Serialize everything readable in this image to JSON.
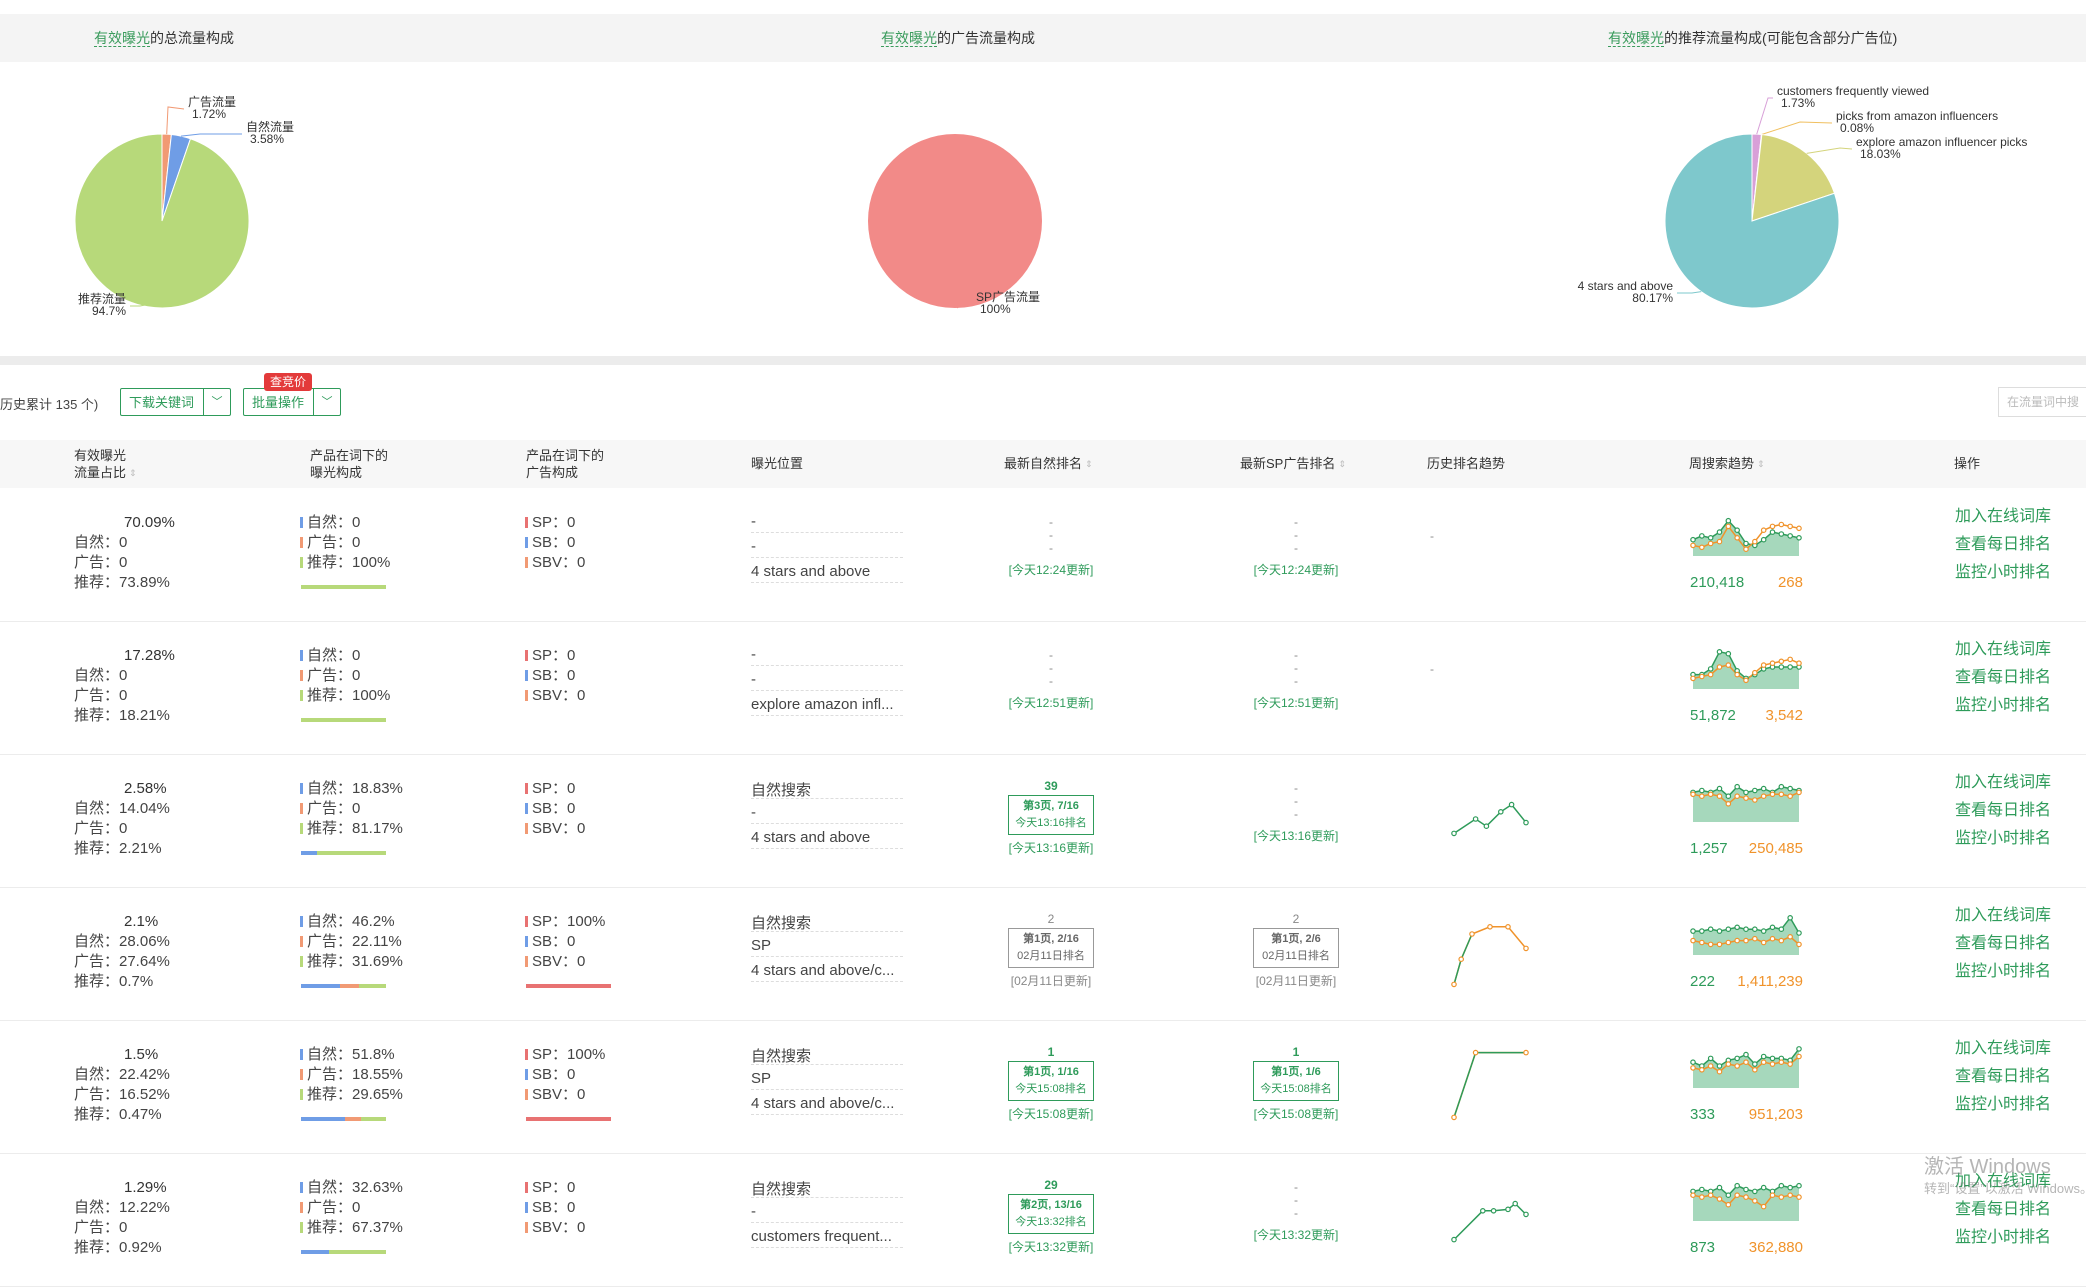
{
  "charts": [
    {
      "title_hl": "有效曝光",
      "title_rest": "的总流量构成",
      "chart_data": {
        "type": "pie",
        "slices": [
          {
            "label": "广告流量",
            "value": 1.72,
            "pct": "1.72%",
            "color": "#f19a74"
          },
          {
            "label": "自然流量",
            "value": 3.58,
            "pct": "3.58%",
            "color": "#6f9de6"
          },
          {
            "label": "推荐流量",
            "value": 94.7,
            "pct": "94.7%",
            "color": "#b7d97a"
          }
        ]
      }
    },
    {
      "title_hl": "有效曝光",
      "title_rest": "的广告流量构成",
      "chart_data": {
        "type": "pie",
        "slices": [
          {
            "label": "SP广告流量",
            "value": 100,
            "pct": "100%",
            "color": "#f28a88"
          }
        ]
      }
    },
    {
      "title_hl": "有效曝光",
      "title_rest": "的推荐流量构成(可能包含部分广告位)",
      "chart_data": {
        "type": "pie",
        "slices": [
          {
            "label": "customers frequently viewed",
            "value": 1.73,
            "pct": "1.73%",
            "color": "#d8a0d8"
          },
          {
            "label": "picks from amazon influencers",
            "value": 0.08,
            "pct": "0.08%",
            "color": "#f0c060"
          },
          {
            "label": "explore amazon influencer picks",
            "value": 18.03,
            "pct": "18.03%",
            "color": "#d4d47c"
          },
          {
            "label": "4 stars and above",
            "value": 80.17,
            "pct": "80.17%",
            "color": "#7ec8cc"
          }
        ]
      }
    }
  ],
  "toolbar": {
    "history_text": "历史累计 135 个)",
    "download_label": "下载关键词",
    "batch_label": "批量操作",
    "badge": "查竞价",
    "search_placeholder": "在流量词中搜"
  },
  "table": {
    "headers": {
      "exposure_1": "有效曝光",
      "exposure_2": "流量占比",
      "composition_1": "产品在词下的",
      "composition_2": "曝光构成",
      "ad_1": "产品在词下的",
      "ad_2": "广告构成",
      "position": "曝光位置",
      "natural_rank": "最新自然排名",
      "sp_rank": "最新SP广告排名",
      "history": "历史排名趋势",
      "weekly": "周搜索趋势",
      "ops": "操作"
    },
    "ops_labels": [
      "加入在线词库",
      "查看每日排名",
      "监控小时排名"
    ],
    "rows": [
      {
        "share": "70.09%",
        "nat": "自然：0",
        "adv": "广告：0",
        "rec": "推荐：73.89%",
        "c_nat": "自然：0",
        "c_adv": "广告：0",
        "c_rec": "推荐：100%",
        "bar": [
          0,
          0,
          100
        ],
        "a_sp": "SP：0",
        "a_sb": "SB：0",
        "a_sbv": "SBV：0",
        "sp_bar": 0,
        "pos": [
          "-",
          "-",
          "4 stars and above"
        ],
        "nrank": {
          "type": "dash",
          "update": "[今天12:24更新]"
        },
        "srank": {
          "type": "dash",
          "update": "[今天12:24更新]"
        },
        "hist": {
          "type": "dash",
          "text": "-"
        },
        "weekly": {
          "v1": "210,418",
          "v2": "268",
          "g": [
            0.35,
            0.45,
            0.4,
            0.55,
            0.85,
            0.6,
            0.25,
            0.2,
            0.35,
            0.55,
            0.5,
            0.45,
            0.4
          ],
          "o": [
            0.2,
            0.15,
            0.25,
            0.3,
            0.7,
            0.4,
            0.1,
            0.3,
            0.6,
            0.7,
            0.75,
            0.7,
            0.65
          ]
        }
      },
      {
        "share": "17.28%",
        "nat": "自然：0",
        "adv": "广告：0",
        "rec": "推荐：18.21%",
        "c_nat": "自然：0",
        "c_adv": "广告：0",
        "c_rec": "推荐：100%",
        "bar": [
          0,
          0,
          100
        ],
        "a_sp": "SP：0",
        "a_sb": "SB：0",
        "a_sbv": "SBV：0",
        "sp_bar": 0,
        "pos": [
          "-",
          "-",
          "explore amazon infl..."
        ],
        "nrank": {
          "type": "dash",
          "update": "[今天12:51更新]"
        },
        "srank": {
          "type": "dash",
          "update": "[今天12:51更新]"
        },
        "hist": {
          "type": "dash",
          "text": "-"
        },
        "weekly": {
          "v1": "51,872",
          "v2": "3,542",
          "g": [
            0.3,
            0.3,
            0.45,
            0.9,
            0.85,
            0.4,
            0.2,
            0.3,
            0.45,
            0.5,
            0.5,
            0.5,
            0.5
          ],
          "o": [
            0.2,
            0.25,
            0.3,
            0.5,
            0.55,
            0.3,
            0.15,
            0.35,
            0.55,
            0.6,
            0.65,
            0.7,
            0.6
          ]
        }
      },
      {
        "share": "2.58%",
        "nat": "自然：14.04%",
        "adv": "广告：0",
        "rec": "推荐：2.21%",
        "c_nat": "自然：18.83%",
        "c_adv": "广告：0",
        "c_rec": "推荐：81.17%",
        "bar": [
          18.83,
          0,
          81.17
        ],
        "a_sp": "SP：0",
        "a_sb": "SB：0",
        "a_sbv": "SBV：0",
        "sp_bar": 0,
        "pos": [
          "自然搜索",
          "-",
          "4 stars and above"
        ],
        "nrank": {
          "type": "box",
          "num": "39",
          "line1": "第3页, 7/16",
          "line2": "今天13:16排名",
          "update": "[今天13:16更新]",
          "grey": false
        },
        "srank": {
          "type": "dash",
          "update": "[今天13:16更新]"
        },
        "hist": {
          "type": "line",
          "pts": [
            [
              0,
              0.3
            ],
            [
              0.3,
              0.5
            ],
            [
              0.45,
              0.4
            ],
            [
              0.65,
              0.6
            ],
            [
              0.8,
              0.7
            ],
            [
              1,
              0.45
            ]
          ]
        },
        "weekly": {
          "v1": "1,257",
          "v2": "250,485",
          "g": [
            0.7,
            0.75,
            0.7,
            0.8,
            0.6,
            0.85,
            0.7,
            0.75,
            0.8,
            0.7,
            0.85,
            0.8,
            0.75
          ],
          "o": [
            0.65,
            0.6,
            0.65,
            0.6,
            0.4,
            0.6,
            0.55,
            0.5,
            0.6,
            0.65,
            0.65,
            0.6,
            0.7
          ]
        }
      },
      {
        "share": "2.1%",
        "nat": "自然：28.06%",
        "adv": "广告：27.64%",
        "rec": "推荐：0.7%",
        "c_nat": "自然：46.2%",
        "c_adv": "广告：22.11%",
        "c_rec": "推荐：31.69%",
        "bar": [
          46.2,
          22.11,
          31.69
        ],
        "a_sp": "SP：100%",
        "a_sb": "SB：0",
        "a_sbv": "SBV：0",
        "sp_bar": 100,
        "pos": [
          "自然搜索",
          "SP",
          "4 stars and above/c..."
        ],
        "nrank": {
          "type": "box",
          "num": "2",
          "line1": "第1页, 2/16",
          "line2": "02月11日排名",
          "update": "[02月11日更新]",
          "grey": true
        },
        "srank": {
          "type": "box",
          "num": "2",
          "line1": "第1页, 2/6",
          "line2": "02月11日排名",
          "update": "[02月11日更新]",
          "grey": true
        },
        "hist": {
          "type": "line2",
          "pts": [
            [
              0,
              0.05
            ],
            [
              0.1,
              0.4
            ],
            [
              0.25,
              0.75
            ],
            [
              0.5,
              0.85
            ],
            [
              0.75,
              0.85
            ],
            [
              1,
              0.55
            ]
          ]
        },
        "weekly": {
          "v1": "222",
          "v2": "1,411,239",
          "g": [
            0.55,
            0.55,
            0.6,
            0.55,
            0.6,
            0.65,
            0.6,
            0.6,
            0.55,
            0.65,
            0.6,
            0.9,
            0.5
          ],
          "o": [
            0.3,
            0.25,
            0.2,
            0.2,
            0.25,
            0.3,
            0.3,
            0.35,
            0.25,
            0.35,
            0.3,
            0.4,
            0.2
          ]
        }
      },
      {
        "share": "1.5%",
        "nat": "自然：22.42%",
        "adv": "广告：16.52%",
        "rec": "推荐：0.47%",
        "c_nat": "自然：51.8%",
        "c_adv": "广告：18.55%",
        "c_rec": "推荐：29.65%",
        "bar": [
          51.8,
          18.55,
          29.65
        ],
        "a_sp": "SP：100%",
        "a_sb": "SB：0",
        "a_sbv": "SBV：0",
        "sp_bar": 100,
        "pos": [
          "自然搜索",
          "SP",
          "4 stars and above/c..."
        ],
        "nrank": {
          "type": "box",
          "num": "1",
          "line1": "第1页, 1/16",
          "line2": "今天15:08排名",
          "update": "[今天15:08更新]",
          "grey": false
        },
        "srank": {
          "type": "box",
          "num": "1",
          "line1": "第1页, 1/6",
          "line2": "今天15:08排名",
          "update": "[今天15:08更新]",
          "grey": false
        },
        "hist": {
          "type": "line2",
          "pts": [
            [
              0,
              0.05
            ],
            [
              0.3,
              0.95
            ],
            [
              1,
              0.95
            ]
          ]
        },
        "weekly": {
          "v1": "333",
          "v2": "951,203",
          "g": [
            0.6,
            0.5,
            0.7,
            0.5,
            0.65,
            0.7,
            0.8,
            0.55,
            0.75,
            0.7,
            0.7,
            0.65,
            0.95
          ],
          "o": [
            0.45,
            0.4,
            0.5,
            0.35,
            0.55,
            0.5,
            0.6,
            0.4,
            0.6,
            0.55,
            0.6,
            0.55,
            0.75
          ]
        }
      },
      {
        "share": "1.29%",
        "nat": "自然：12.22%",
        "adv": "广告：0",
        "rec": "推荐：0.92%",
        "c_nat": "自然：32.63%",
        "c_adv": "广告：0",
        "c_rec": "推荐：67.37%",
        "bar": [
          32.63,
          0,
          67.37
        ],
        "a_sp": "SP：0",
        "a_sb": "SB：0",
        "a_sbv": "SBV：0",
        "sp_bar": 0,
        "pos": [
          "自然搜索",
          "-",
          "customers frequent..."
        ],
        "nrank": {
          "type": "box",
          "num": "29",
          "line1": "第2页, 13/16",
          "line2": "今天13:32排名",
          "update": "[今天13:32更新]",
          "grey": false
        },
        "srank": {
          "type": "dash",
          "update": "[今天13:32更新]"
        },
        "hist": {
          "type": "line",
          "pts": [
            [
              0,
              0.2
            ],
            [
              0.4,
              0.6
            ],
            [
              0.55,
              0.6
            ],
            [
              0.75,
              0.62
            ],
            [
              0.85,
              0.7
            ],
            [
              1,
              0.55
            ]
          ]
        },
        "weekly": {
          "v1": "873",
          "v2": "362,880",
          "g": [
            0.7,
            0.75,
            0.7,
            0.8,
            0.6,
            0.85,
            0.75,
            0.7,
            0.8,
            0.7,
            0.85,
            0.8,
            0.85
          ],
          "o": [
            0.6,
            0.55,
            0.6,
            0.5,
            0.35,
            0.6,
            0.55,
            0.45,
            0.3,
            0.6,
            0.55,
            0.6,
            0.55
          ]
        }
      }
    ]
  },
  "colors": {
    "green": "#2e9b5a",
    "orange": "#f0932b",
    "nat": "#6f9de6",
    "adv": "#f19a74",
    "rec": "#b7d97a",
    "sp": "#e87272"
  },
  "watermark": {
    "line1": "激活 Windows",
    "line2": "转到“设置”以激活 Windows。"
  }
}
